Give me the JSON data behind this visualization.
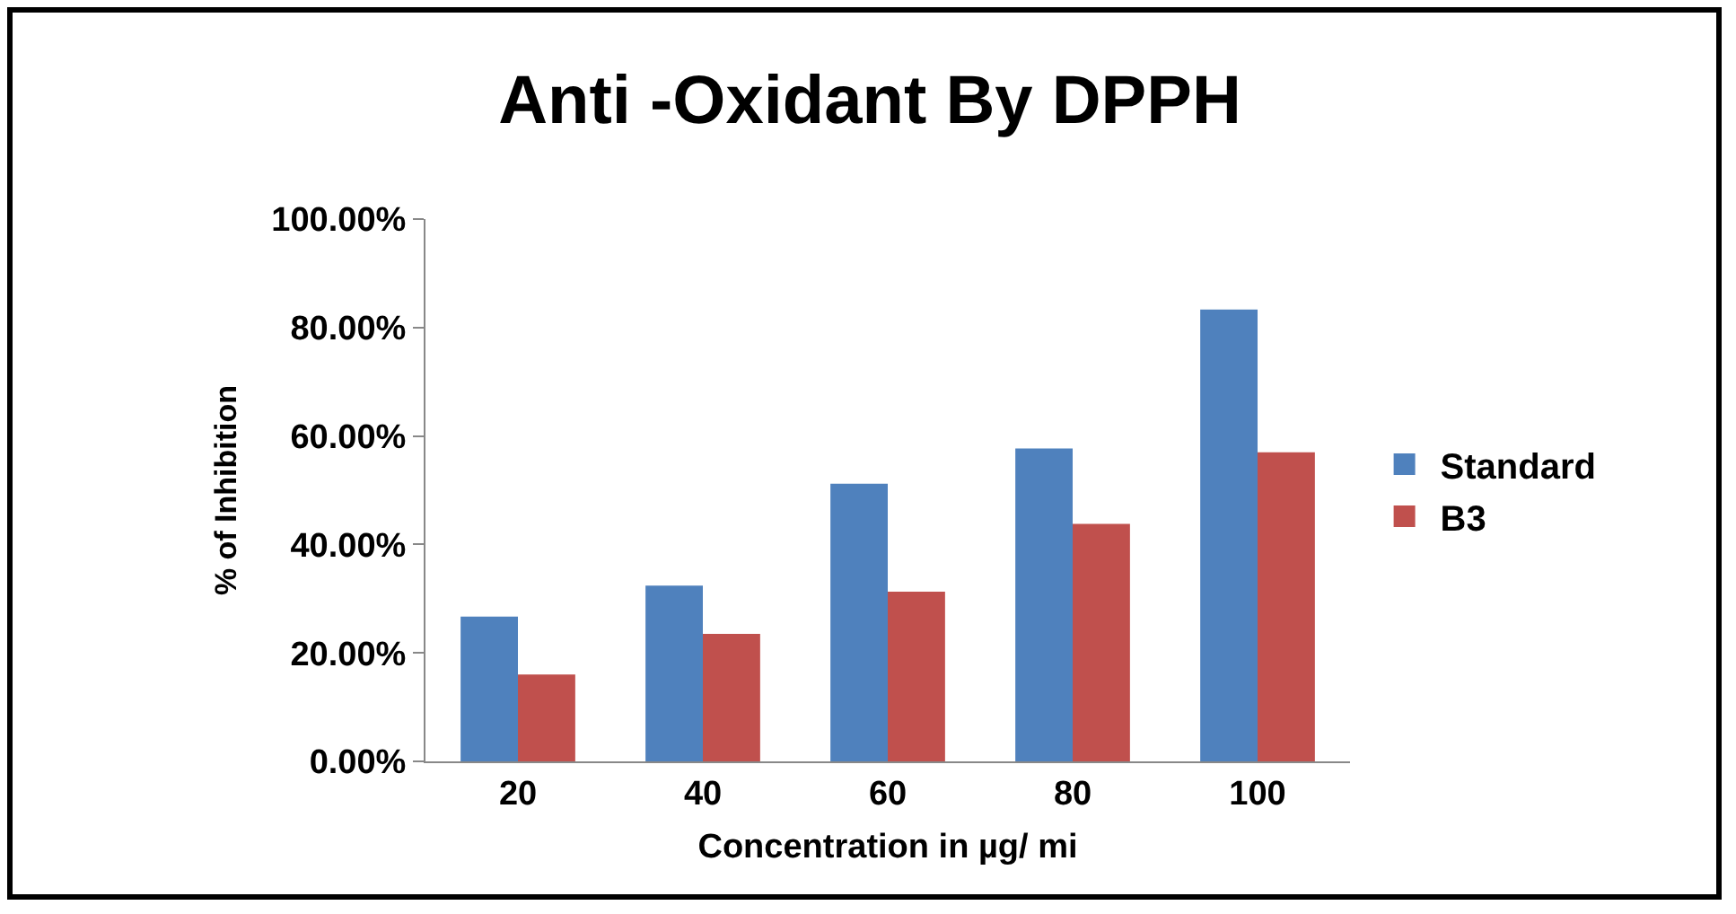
{
  "chart_data": {
    "type": "bar",
    "title": "Anti -Oxidant By DPPH",
    "xlabel": "Concentration in µg/ mi",
    "ylabel": "% of Inhibition",
    "categories": [
      "20",
      "40",
      "60",
      "80",
      "100"
    ],
    "series": [
      {
        "name": "Standard",
        "color": "#4f81bd",
        "values": [
          26.7,
          32.4,
          51.2,
          57.7,
          83.3
        ]
      },
      {
        "name": "B3",
        "color": "#c0504d",
        "values": [
          16,
          23.5,
          31.3,
          43.8,
          57
        ]
      }
    ],
    "ylim": [
      0,
      100
    ],
    "yticks": [
      {
        "value": 0,
        "label": "0.00%"
      },
      {
        "value": 20,
        "label": "20.00%"
      },
      {
        "value": 40,
        "label": "40.00%"
      },
      {
        "value": 60,
        "label": "60.00%"
      },
      {
        "value": 80,
        "label": "80.00%"
      },
      {
        "value": 100,
        "label": "100.00%"
      }
    ],
    "grid": false,
    "legend": "right"
  }
}
